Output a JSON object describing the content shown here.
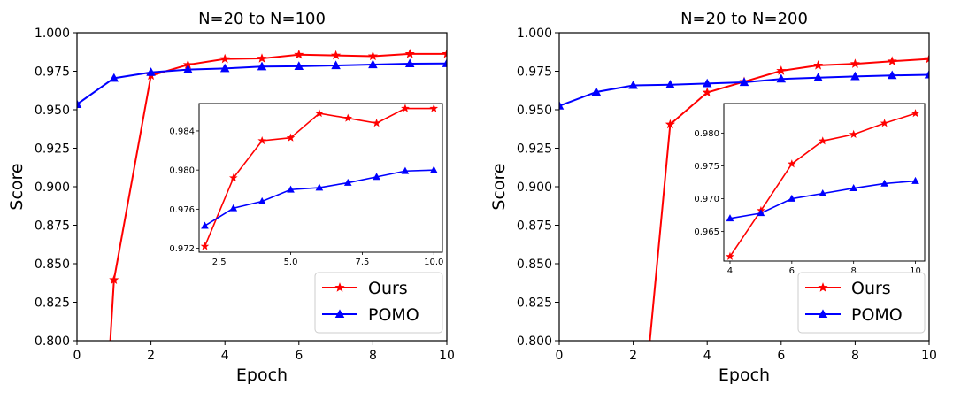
{
  "chart_data": [
    {
      "type": "line",
      "title": "N=20 to N=100",
      "xlabel": "Epoch",
      "ylabel": "Score",
      "xlim": [
        0,
        10
      ],
      "ylim": [
        0.8,
        1.0
      ],
      "xticks": [
        "0",
        "2",
        "4",
        "6",
        "8",
        "10"
      ],
      "yticks": [
        "0.800",
        "0.825",
        "0.850",
        "0.875",
        "0.900",
        "0.925",
        "0.950",
        "0.975",
        "1.000"
      ],
      "legend_position": "lower-right",
      "series": [
        {
          "name": "Ours",
          "color": "#ff0000",
          "marker": "star",
          "x": [
            0.9,
            1,
            2,
            3,
            4,
            5,
            6,
            7,
            8,
            9,
            10
          ],
          "y": [
            0.8,
            0.8395,
            0.9722,
            0.9792,
            0.983,
            0.9833,
            0.9858,
            0.9853,
            0.9848,
            0.9863,
            0.9863
          ]
        },
        {
          "name": "POMO",
          "color": "#0000ff",
          "marker": "triangle",
          "x": [
            0,
            1,
            2,
            3,
            4,
            5,
            6,
            7,
            8,
            9,
            10
          ],
          "y": [
            0.9535,
            0.9705,
            0.9743,
            0.9761,
            0.9768,
            0.978,
            0.9782,
            0.9787,
            0.9793,
            0.9799,
            0.98
          ]
        }
      ],
      "inset": {
        "xlim": [
          1.8,
          10.3
        ],
        "ylim": [
          0.9716,
          0.9868
        ],
        "xticks": [
          "2.5",
          "5.0",
          "7.5",
          "10.0"
        ],
        "yticks": [
          "0.972",
          "0.976",
          "0.980",
          "0.984"
        ],
        "series": [
          {
            "name": "Ours",
            "x": [
              2,
              3,
              4,
              5,
              6,
              7,
              8,
              9,
              10
            ],
            "y": [
              0.9722,
              0.9792,
              0.983,
              0.9833,
              0.9858,
              0.9853,
              0.9848,
              0.9863,
              0.9863
            ]
          },
          {
            "name": "POMO",
            "x": [
              2,
              3,
              4,
              5,
              6,
              7,
              8,
              9,
              10
            ],
            "y": [
              0.9743,
              0.9761,
              0.9768,
              0.978,
              0.9782,
              0.9787,
              0.9793,
              0.9799,
              0.98
            ]
          }
        ]
      }
    },
    {
      "type": "line",
      "title": "N=20 to N=200",
      "xlabel": "Epoch",
      "ylabel": "Score",
      "xlim": [
        0,
        10
      ],
      "ylim": [
        0.8,
        1.0
      ],
      "xticks": [
        "0",
        "2",
        "4",
        "6",
        "8",
        "10"
      ],
      "yticks": [
        "0.800",
        "0.825",
        "0.850",
        "0.875",
        "0.900",
        "0.925",
        "0.950",
        "0.975",
        "1.000"
      ],
      "legend_position": "lower-right",
      "series": [
        {
          "name": "Ours",
          "color": "#ff0000",
          "marker": "star",
          "x": [
            2.45,
            3,
            4,
            5,
            6,
            7,
            8,
            9,
            10
          ],
          "y": [
            0.8,
            0.9405,
            0.9612,
            0.9682,
            0.9753,
            0.9788,
            0.9798,
            0.9815,
            0.983
          ]
        },
        {
          "name": "POMO",
          "color": "#0000ff",
          "marker": "triangle",
          "x": [
            0,
            1,
            2,
            3,
            4,
            5,
            6,
            7,
            8,
            9,
            10
          ],
          "y": [
            0.9525,
            0.9615,
            0.9658,
            0.9662,
            0.967,
            0.9678,
            0.97,
            0.9708,
            0.9716,
            0.9723,
            0.9727
          ]
        }
      ],
      "inset": {
        "xlim": [
          3.8,
          10.3
        ],
        "ylim": [
          0.9605,
          0.9845
        ],
        "xticks": [
          "4",
          "6",
          "8",
          "10"
        ],
        "yticks": [
          "0.965",
          "0.970",
          "0.975",
          "0.980"
        ],
        "series": [
          {
            "name": "Ours",
            "x": [
              4,
              5,
              6,
              7,
              8,
              9,
              10
            ],
            "y": [
              0.9612,
              0.9682,
              0.9753,
              0.9788,
              0.9798,
              0.9815,
              0.983
            ]
          },
          {
            "name": "POMO",
            "x": [
              4,
              5,
              6,
              7,
              8,
              9,
              10
            ],
            "y": [
              0.967,
              0.9678,
              0.97,
              0.9708,
              0.9716,
              0.9723,
              0.9727
            ]
          }
        ]
      }
    }
  ]
}
